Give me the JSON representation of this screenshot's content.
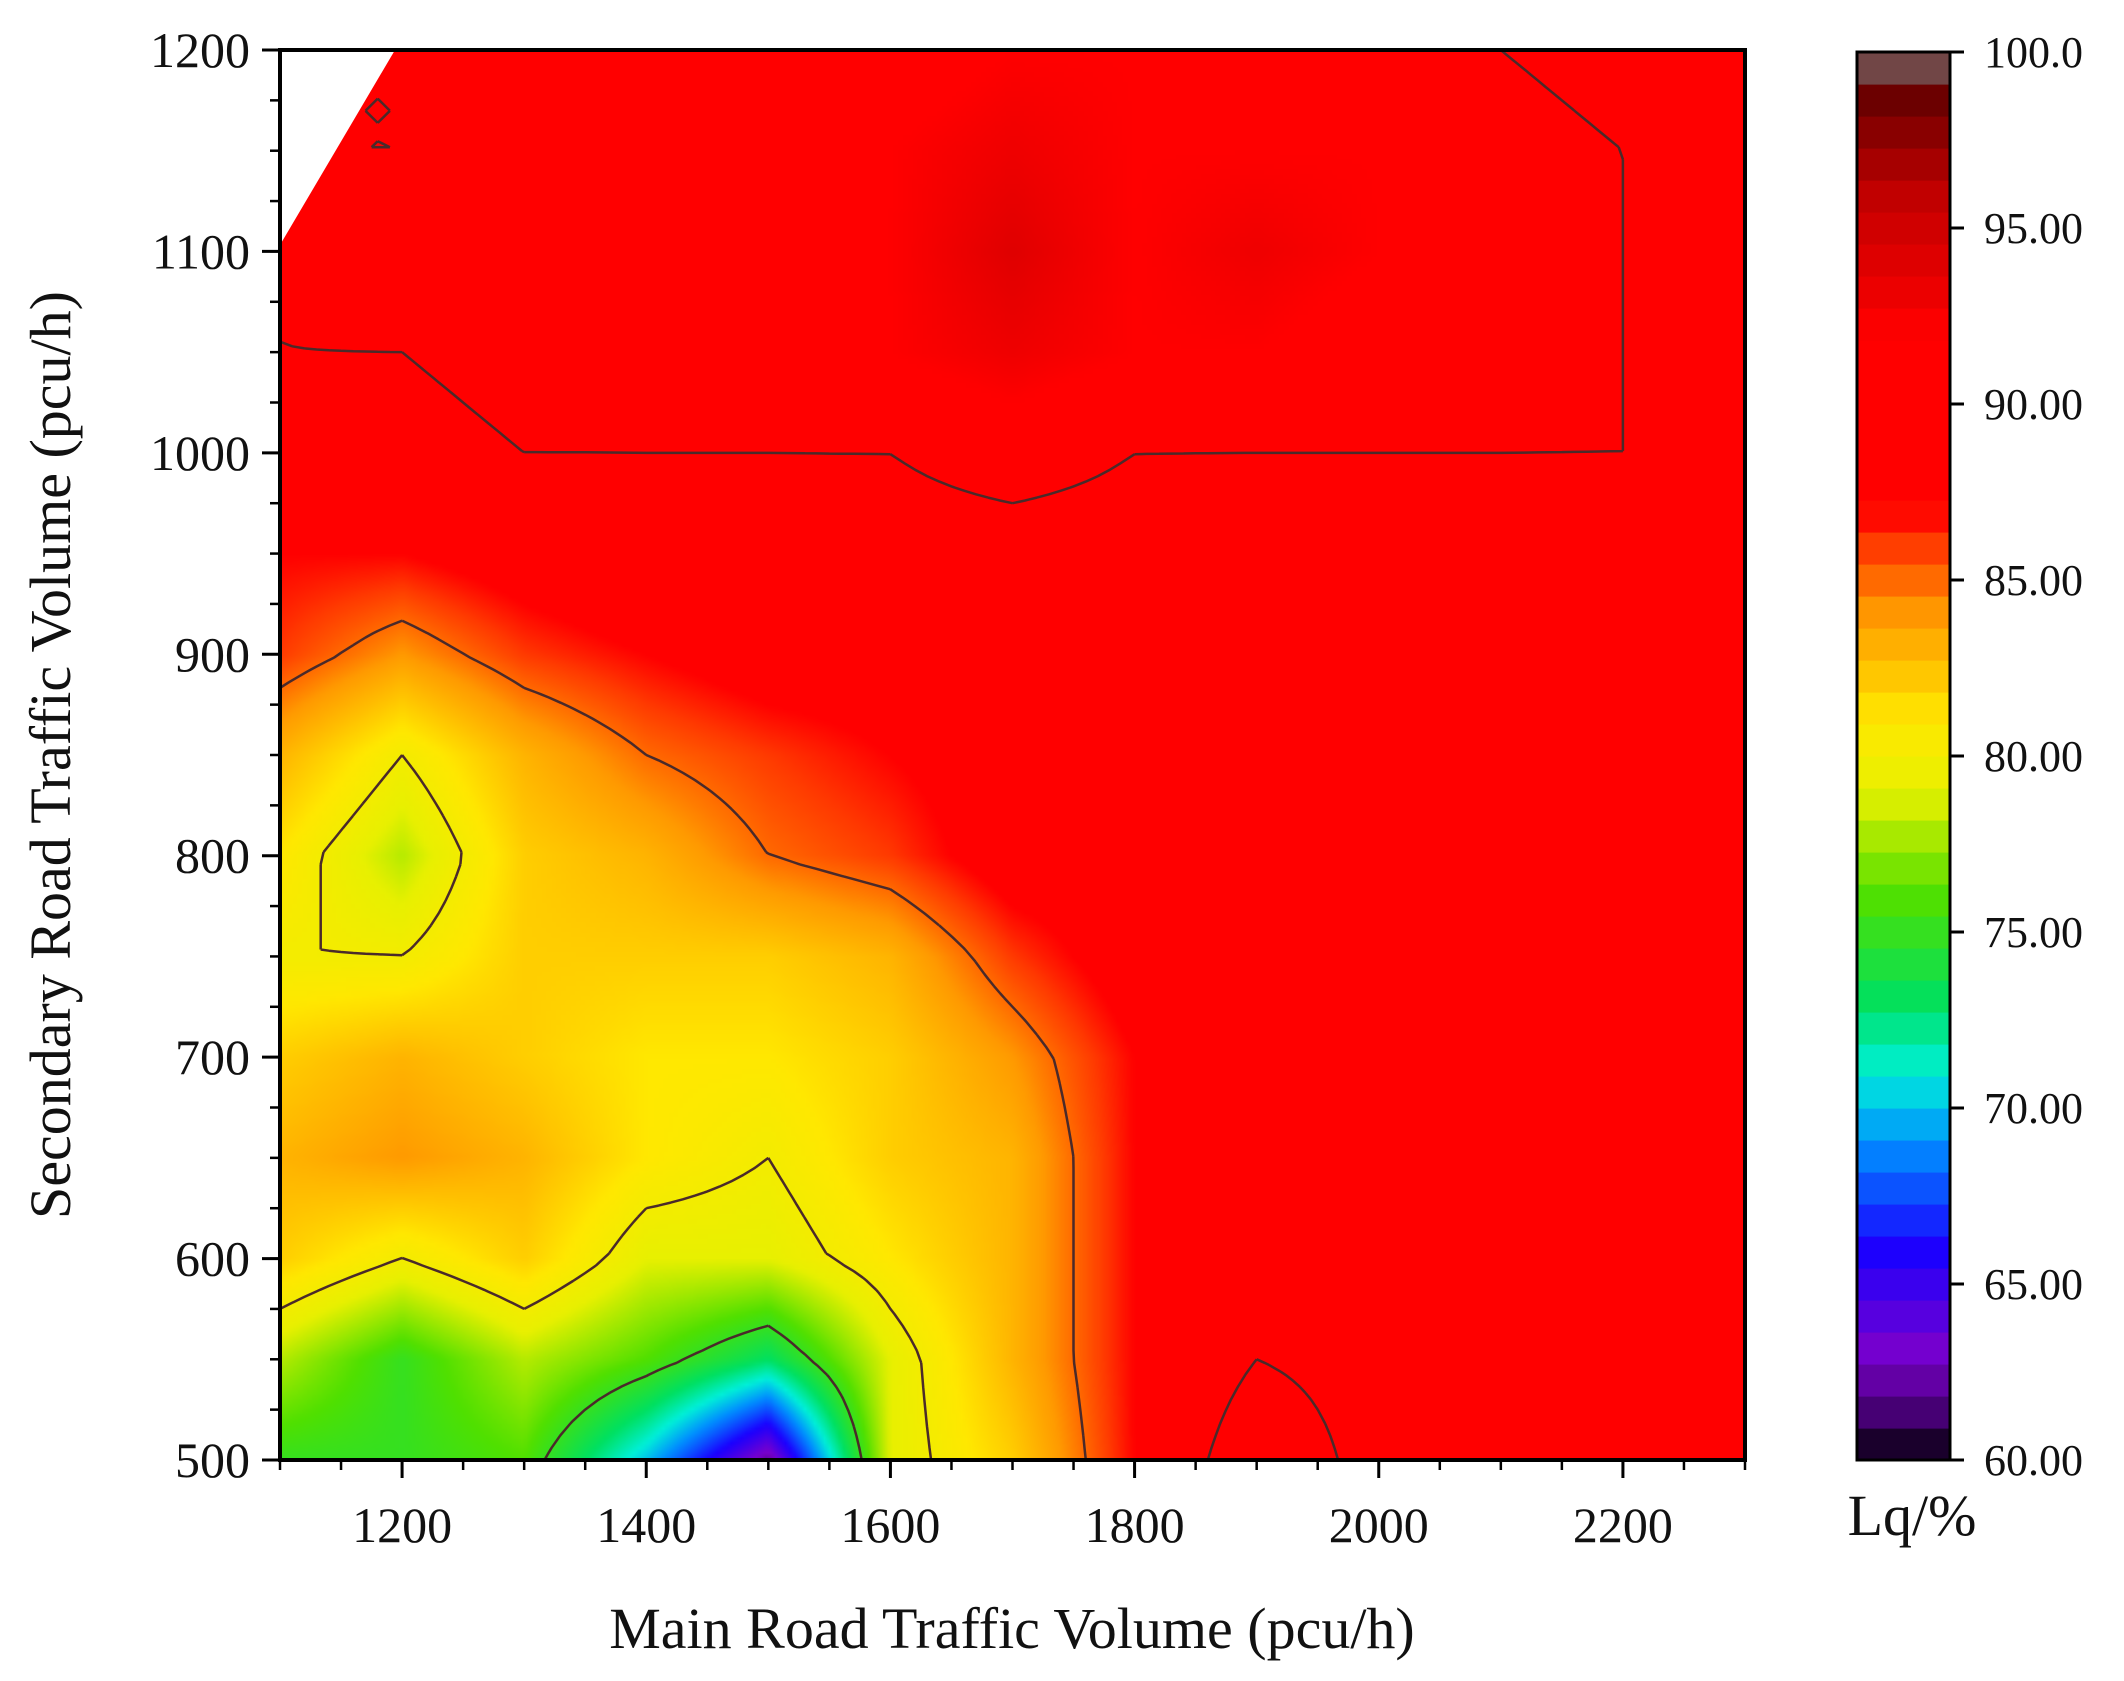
{
  "chart_data": {
    "type": "heatmap",
    "title": "",
    "xlabel": "Main Road Traffic Volume (pcu/h)",
    "ylabel": "Secondary Road Traffic Volume (pcu/h)",
    "xlim": [
      1100,
      2300
    ],
    "ylim": [
      500,
      1200
    ],
    "x_ticks": [
      "1200",
      "1400",
      "1600",
      "1800",
      "2000",
      "2200"
    ],
    "y_ticks": [
      "500",
      "600",
      "700",
      "800",
      "900",
      "1000",
      "1100",
      "1200"
    ],
    "colorbar": {
      "label": "Lq/%",
      "range": [
        60,
        100
      ],
      "ticks": [
        "60.00",
        "65.00",
        "70.00",
        "75.00",
        "80.00",
        "85.00",
        "90.00",
        "95.00",
        "100.0"
      ],
      "color_stops": [
        {
          "value": 60,
          "color": "#000000"
        },
        {
          "value": 61,
          "color": "#3a0060"
        },
        {
          "value": 63,
          "color": "#7a00cc"
        },
        {
          "value": 66,
          "color": "#1a00ff"
        },
        {
          "value": 69,
          "color": "#0090ff"
        },
        {
          "value": 71,
          "color": "#00f0d8"
        },
        {
          "value": 73,
          "color": "#00e060"
        },
        {
          "value": 76,
          "color": "#50e000"
        },
        {
          "value": 79,
          "color": "#e8f000"
        },
        {
          "value": 81,
          "color": "#ffe800"
        },
        {
          "value": 84,
          "color": "#ff9a00"
        },
        {
          "value": 86,
          "color": "#ff3a00"
        },
        {
          "value": 87,
          "color": "#ff0000"
        },
        {
          "value": 92,
          "color": "#ff0000"
        },
        {
          "value": 96,
          "color": "#c00000"
        },
        {
          "value": 99,
          "color": "#600000"
        },
        {
          "value": 100,
          "color": "#808080"
        }
      ]
    },
    "x": [
      1100,
      1200,
      1300,
      1400,
      1500,
      1600,
      1700,
      1800,
      1900,
      2000,
      2100,
      2200,
      2300
    ],
    "y": [
      500,
      550,
      600,
      650,
      700,
      750,
      800,
      850,
      900,
      950,
      1000,
      1050,
      1100,
      1150,
      1200
    ],
    "z": [
      [
        75,
        75,
        76,
        70,
        62,
        79,
        82,
        87,
        92,
        89,
        88,
        88,
        88
      ],
      [
        78,
        75,
        78,
        76,
        73,
        79,
        83,
        87,
        90,
        89,
        88,
        88,
        88
      ],
      [
        82,
        80,
        82,
        79,
        79,
        81,
        83,
        87,
        88,
        88,
        88,
        88,
        88
      ],
      [
        83,
        84,
        83,
        81,
        80,
        82,
        83,
        87,
        88,
        88,
        88,
        88,
        88
      ],
      [
        82,
        83,
        82,
        81,
        81,
        82,
        84,
        87,
        88,
        88,
        88,
        87,
        88
      ],
      [
        80,
        80,
        82,
        82,
        82,
        83,
        86,
        88,
        88,
        88,
        88,
        88,
        88
      ],
      [
        81,
        78,
        82,
        83,
        85,
        86,
        88,
        88,
        88,
        88,
        88,
        88,
        88
      ],
      [
        83,
        80,
        83,
        85,
        86,
        87,
        88,
        88,
        88,
        88,
        88,
        88,
        88
      ],
      [
        86,
        84,
        86,
        87,
        88,
        88,
        88,
        88,
        88,
        88,
        89,
        89,
        89
      ],
      [
        87,
        87,
        88,
        89,
        89,
        89,
        89,
        89,
        88,
        89,
        89,
        89,
        89
      ],
      [
        89,
        89,
        90,
        90,
        90,
        90,
        91,
        90,
        90,
        90,
        90,
        90,
        89
      ],
      [
        90,
        90,
        91,
        91,
        91,
        92,
        93,
        92,
        92,
        91,
        91,
        90,
        89
      ],
      [
        90,
        91,
        92,
        92,
        92,
        92,
        94,
        92,
        93,
        92,
        91,
        90,
        89
      ],
      [
        90,
        90,
        91,
        92,
        92,
        92,
        93,
        92,
        92,
        92,
        91,
        90,
        89
      ],
      [
        90,
        90,
        90,
        91,
        91,
        91,
        92,
        92,
        91,
        91,
        90,
        89,
        89
      ]
    ],
    "contour_levels": [
      75,
      80,
      85,
      90
    ],
    "grid": false,
    "legend": "colorbar-right"
  }
}
